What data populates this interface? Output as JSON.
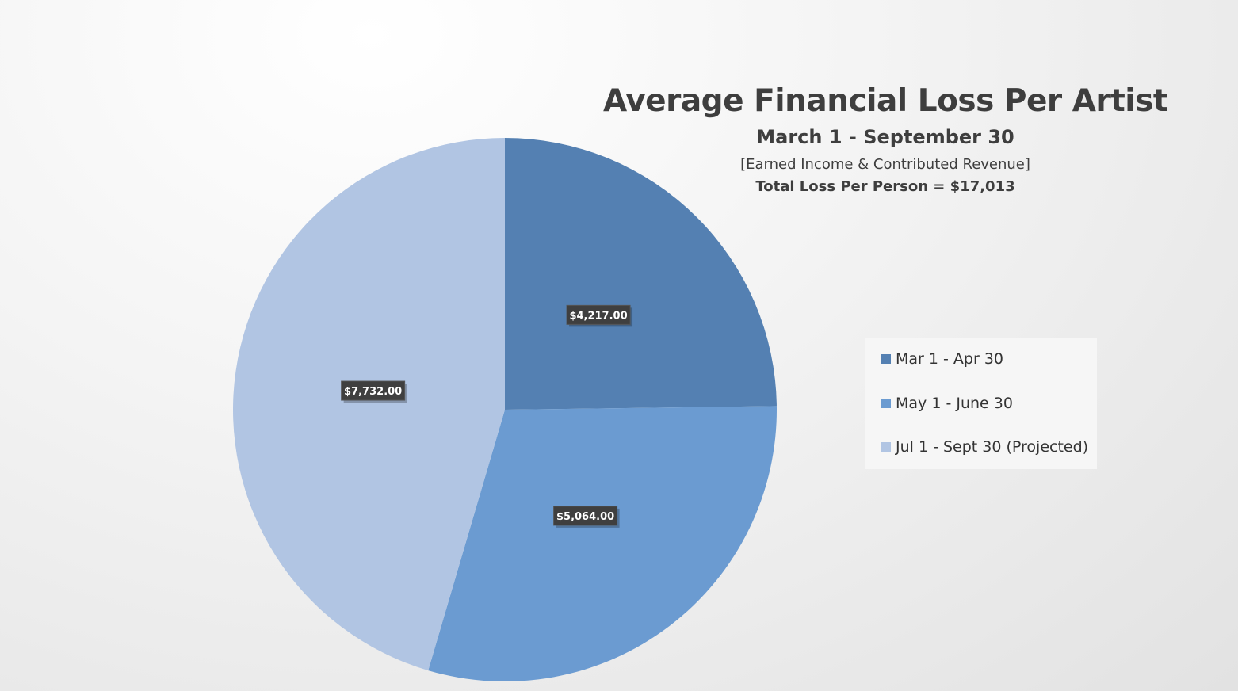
{
  "chart_data": {
    "type": "pie",
    "title": "Average Financial Loss Per Artist",
    "subtitle": "March 1 - September 30",
    "note": "[Earned Income & Contributed Revenue]",
    "total_label": "Total Loss Per Person = $17,013",
    "legend_position": "right",
    "slices": [
      {
        "name": "Mar 1 - Apr 30",
        "value": 4217,
        "label": "$4,217.00",
        "color": "#5480b2"
      },
      {
        "name": "May 1 - June 30",
        "value": 5064,
        "label": "$5,064.00",
        "color": "#6b9bd1"
      },
      {
        "name": "Jul 1 - Sept 30 (Projected)",
        "value": 7732,
        "label": "$7,732.00",
        "color": "#b1c5e3"
      }
    ]
  }
}
